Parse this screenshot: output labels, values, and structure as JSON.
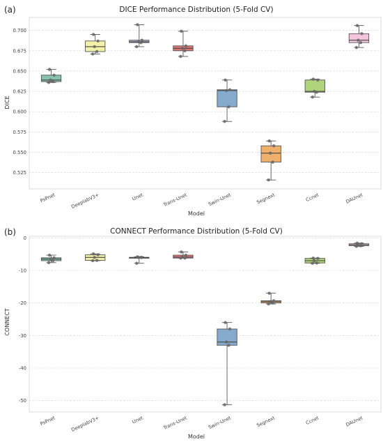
{
  "chart_data": [
    {
      "type": "box",
      "panel_label": "(a)",
      "title": "DICE Performance Distribution (5-Fold CV)",
      "xlabel": "Model",
      "ylabel": "DICE",
      "ylim": [
        0.505,
        0.716
      ],
      "yticks": [
        "0.525",
        "0.550",
        "0.575",
        "0.600",
        "0.625",
        "0.650",
        "0.675",
        "0.700"
      ],
      "categories": [
        "PsPnet",
        "DeeplabV3+",
        "Unet",
        "Trans-Unet",
        "Swin-Unet",
        "Segnext",
        "Ccnet",
        "DAUnet"
      ],
      "colors": [
        "#86c2ae",
        "#f3f0a8",
        "#aeb0d6",
        "#e07673",
        "#86aacb",
        "#efb06d",
        "#b0d47a",
        "#f4c4dc"
      ],
      "grid": true,
      "boxes": [
        {
          "min": 0.636,
          "q1": 0.637,
          "median": 0.639,
          "q3": 0.645,
          "max": 0.652
        },
        {
          "min": 0.671,
          "q1": 0.674,
          "median": 0.68,
          "q3": 0.687,
          "max": 0.695
        },
        {
          "min": 0.68,
          "q1": 0.685,
          "median": 0.686,
          "q3": 0.688,
          "max": 0.707
        },
        {
          "min": 0.668,
          "q1": 0.675,
          "median": 0.678,
          "q3": 0.681,
          "max": 0.699
        },
        {
          "min": 0.588,
          "q1": 0.606,
          "median": 0.626,
          "q3": 0.627,
          "max": 0.639
        },
        {
          "min": 0.516,
          "q1": 0.538,
          "median": 0.549,
          "q3": 0.558,
          "max": 0.564
        },
        {
          "min": 0.618,
          "q1": 0.624,
          "median": 0.625,
          "q3": 0.639,
          "max": 0.64
        },
        {
          "min": 0.679,
          "q1": 0.685,
          "median": 0.688,
          "q3": 0.696,
          "max": 0.706
        }
      ],
      "points": [
        [
          0.636,
          0.637,
          0.639,
          0.645,
          0.652
        ],
        [
          0.671,
          0.674,
          0.68,
          0.687,
          0.695
        ],
        [
          0.68,
          0.685,
          0.686,
          0.688,
          0.707
        ],
        [
          0.668,
          0.675,
          0.678,
          0.681,
          0.699
        ],
        [
          0.588,
          0.606,
          0.626,
          0.627,
          0.639
        ],
        [
          0.516,
          0.538,
          0.549,
          0.558,
          0.564
        ],
        [
          0.618,
          0.624,
          0.625,
          0.639,
          0.64
        ],
        [
          0.679,
          0.685,
          0.688,
          0.696,
          0.706
        ]
      ]
    },
    {
      "type": "box",
      "panel_label": "(b)",
      "title": "CONNECT Performance Distribution (5-Fold CV)",
      "xlabel": "Model",
      "ylabel": "CONNECT",
      "ylim": [
        -53.5,
        0.5
      ],
      "yticks": [
        "-50",
        "-40",
        "-30",
        "-20",
        "-10",
        "0"
      ],
      "categories": [
        "PsPnet",
        "DeeplabV3+",
        "Unet",
        "Trans-Unet",
        "Swin-Unet",
        "Segnext",
        "Ccnet",
        "DAUnet"
      ],
      "colors": [
        "#86c2ae",
        "#f3f0a8",
        "#aeb0d6",
        "#e07673",
        "#86aacb",
        "#efb06d",
        "#b0d47a",
        "#f4c4dc"
      ],
      "grid": true,
      "boxes": [
        {
          "min": -7.6,
          "q1": -7.0,
          "median": -6.5,
          "q3": -6.1,
          "max": -5.3
        },
        {
          "min": -7.0,
          "q1": -6.9,
          "median": -6.0,
          "q3": -5.2,
          "max": -4.9
        },
        {
          "min": -7.8,
          "q1": -6.0,
          "median": -6.0,
          "q3": -6.0,
          "max": -5.8
        },
        {
          "min": -6.2,
          "q1": -6.2,
          "median": -5.9,
          "q3": -5.3,
          "max": -4.3
        },
        {
          "min": -51.3,
          "q1": -33.0,
          "median": -32.0,
          "q3": -28.0,
          "max": -26.0
        },
        {
          "min": -20.3,
          "q1": -20.0,
          "median": -19.6,
          "q3": -19.3,
          "max": -17.0
        },
        {
          "min": -7.8,
          "q1": -7.7,
          "median": -7.0,
          "q3": -6.3,
          "max": -6.2
        },
        {
          "min": -2.6,
          "q1": -2.4,
          "median": -2.1,
          "q3": -1.8,
          "max": -1.6
        }
      ],
      "points": [
        [
          -7.6,
          -7.0,
          -6.5,
          -6.1,
          -5.3
        ],
        [
          -7.0,
          -6.9,
          -6.0,
          -5.2,
          -4.9
        ],
        [
          -7.8,
          -6.0,
          -6.0,
          -6.0,
          -5.8
        ],
        [
          -6.2,
          -6.2,
          -5.9,
          -5.3,
          -4.3
        ],
        [
          -51.3,
          -33.0,
          -32.0,
          -28.0,
          -26.0
        ],
        [
          -20.3,
          -20.0,
          -19.6,
          -19.3,
          -17.0
        ],
        [
          -7.8,
          -7.7,
          -7.0,
          -6.3,
          -6.2
        ],
        [
          -2.6,
          -2.4,
          -2.1,
          -1.8,
          -1.6
        ]
      ]
    }
  ]
}
